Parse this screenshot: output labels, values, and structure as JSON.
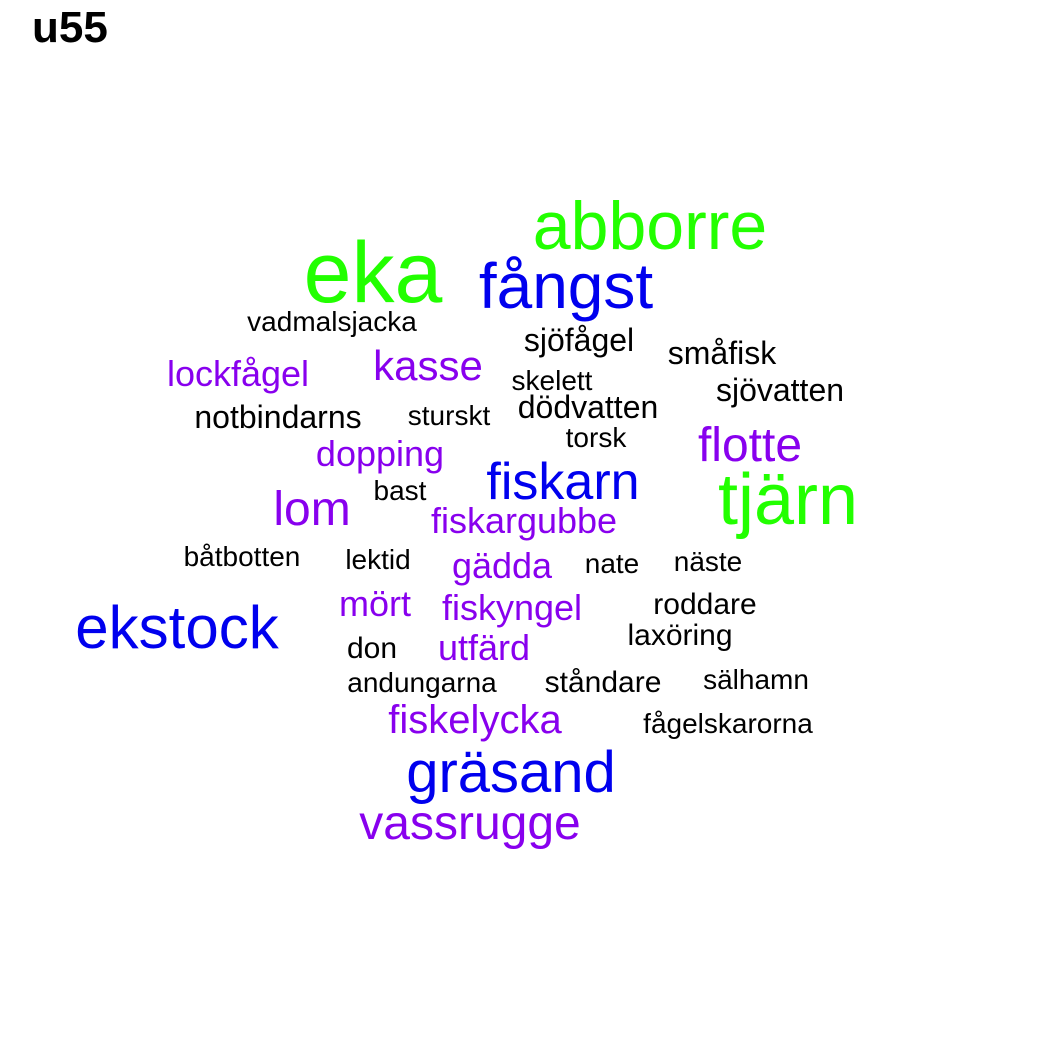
{
  "title": "u55",
  "colors": {
    "green": "#22ff00",
    "blue": "#0000ee",
    "purple": "#8800ee",
    "black": "#000000"
  },
  "words": [
    {
      "text": "eka",
      "color": "green"
    },
    {
      "text": "abborre",
      "color": "green"
    },
    {
      "text": "tjärn",
      "color": "green"
    },
    {
      "text": "fångst",
      "color": "blue"
    },
    {
      "text": "ekstock",
      "color": "blue"
    },
    {
      "text": "gräsand",
      "color": "blue"
    },
    {
      "text": "fiskarn",
      "color": "blue"
    },
    {
      "text": "vassrugge",
      "color": "purple"
    },
    {
      "text": "flotte",
      "color": "purple"
    },
    {
      "text": "lom",
      "color": "purple"
    },
    {
      "text": "kasse",
      "color": "purple"
    },
    {
      "text": "lockfågel",
      "color": "purple"
    },
    {
      "text": "dopping",
      "color": "purple"
    },
    {
      "text": "fiskargubbe",
      "color": "purple"
    },
    {
      "text": "gädda",
      "color": "purple"
    },
    {
      "text": "mört",
      "color": "purple"
    },
    {
      "text": "fiskyngel",
      "color": "purple"
    },
    {
      "text": "utfärd",
      "color": "purple"
    },
    {
      "text": "fiskelycka",
      "color": "purple"
    },
    {
      "text": "vadmalsjacka",
      "color": "black"
    },
    {
      "text": "sjöfågel",
      "color": "black"
    },
    {
      "text": "småfisk",
      "color": "black"
    },
    {
      "text": "skelett",
      "color": "black"
    },
    {
      "text": "sjövatten",
      "color": "black"
    },
    {
      "text": "notbindarns",
      "color": "black"
    },
    {
      "text": "sturskt",
      "color": "black"
    },
    {
      "text": "dödvatten",
      "color": "black"
    },
    {
      "text": "torsk",
      "color": "black"
    },
    {
      "text": "bast",
      "color": "black"
    },
    {
      "text": "båtbotten",
      "color": "black"
    },
    {
      "text": "lektid",
      "color": "black"
    },
    {
      "text": "nate",
      "color": "black"
    },
    {
      "text": "näste",
      "color": "black"
    },
    {
      "text": "roddare",
      "color": "black"
    },
    {
      "text": "laxöring",
      "color": "black"
    },
    {
      "text": "don",
      "color": "black"
    },
    {
      "text": "andungarna",
      "color": "black"
    },
    {
      "text": "ståndare",
      "color": "black"
    },
    {
      "text": "sälhamn",
      "color": "black"
    },
    {
      "text": "fågelskarorna",
      "color": "black"
    }
  ]
}
